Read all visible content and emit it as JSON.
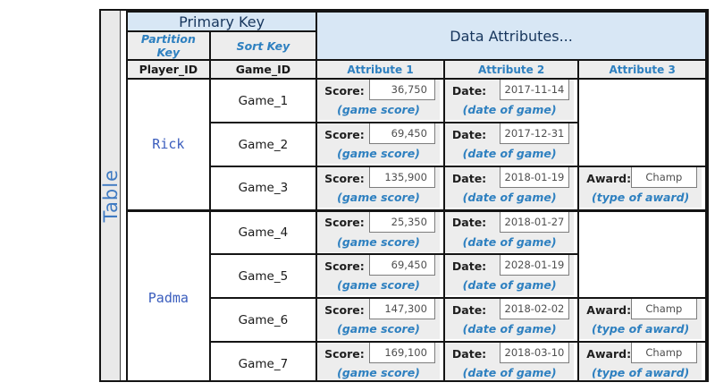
{
  "table_label": "Table",
  "header": {
    "primary_key": "Primary Key",
    "data_attributes": "Data Attributes...",
    "partition_key": "Partition Key",
    "sort_key": "Sort Key",
    "partition_attr_name": "Player_ID",
    "sort_attr_name": "Game_ID",
    "attribute_columns": {
      "a1": "Attribute 1",
      "a2": "Attribute 2",
      "a3": "Attribute 3"
    }
  },
  "labels": {
    "score": "Score:",
    "date": "Date:",
    "award": "Award:",
    "score_note": "(game score)",
    "date_note": "(date of game)",
    "award_note": "(type of award)"
  },
  "players": [
    {
      "name": "Rick"
    },
    {
      "name": "Padma"
    }
  ],
  "rows": [
    {
      "game": "Game_1",
      "score": "36,750",
      "date": "2017-11-14"
    },
    {
      "game": "Game_2",
      "score": "69,450",
      "date": "2017-12-31"
    },
    {
      "game": "Game_3",
      "score": "135,900",
      "date": "2018-01-19",
      "award": "Champ"
    },
    {
      "game": "Game_4",
      "score": "25,350",
      "date": "2018-01-27"
    },
    {
      "game": "Game_5",
      "score": "69,450",
      "date": "2028-01-19"
    },
    {
      "game": "Game_6",
      "score": "147,300",
      "date": "2018-02-02",
      "award": "Champ"
    },
    {
      "game": "Game_7",
      "score": "169,100",
      "date": "2018-03-10",
      "award": "Champ"
    }
  ],
  "colors": {
    "accent_blue_text": "#2e80c0",
    "navy_header_text": "#17365d",
    "header_blue_bg": "#d8e7f5",
    "cell_gray_bg": "#ededed",
    "border_black": "#141414"
  }
}
